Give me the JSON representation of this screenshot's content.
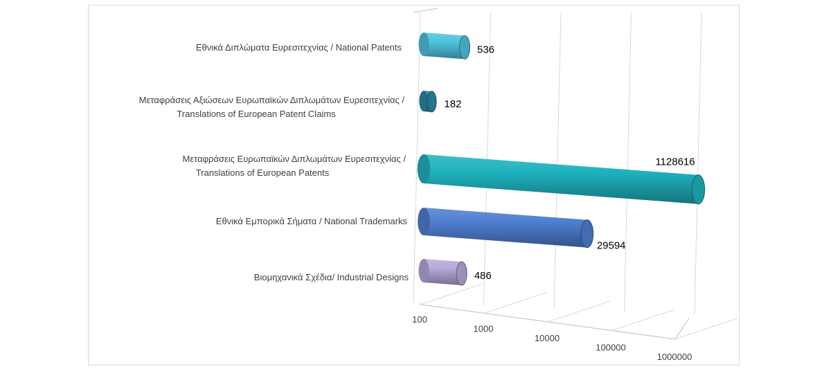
{
  "chart_data": {
    "type": "bar",
    "orientation": "horizontal",
    "style": "3d-cylinder",
    "x_scale": "log",
    "xlim": [
      100,
      1000000
    ],
    "grid": true,
    "legend": "none",
    "categories": [
      [
        "Εθνικά Διπλώματα Ευρεσιτεχνίας / National Patents"
      ],
      [
        "Μεταφράσεις Αξιώσεων Ευρωπαϊκών Διπλωμάτων Ευρεσιτεχνίας /",
        "Translations of European Patent Claims"
      ],
      [
        "Μεταφράσεις Ευρωπαϊκών Διπλωμάτων Ευρεσιτεχνίας /",
        "Translations of European Patents"
      ],
      [
        "Εθνικά Εμπορικά Σήματα / National Trademarks"
      ],
      [
        "Βιομηχανικά Σχέδια/ Industrial Designs"
      ]
    ],
    "values": [
      536,
      182,
      1128616,
      29594,
      486
    ],
    "value_labels": [
      "536",
      "182",
      "1128616",
      "29594",
      "486"
    ],
    "colors": [
      "#4fc3df",
      "#2b8aa6",
      "#1fb3bf",
      "#4f7fd1",
      "#b7a9dc"
    ],
    "x_ticks": [
      "100",
      "1000",
      "10000",
      "100000",
      "1000000"
    ]
  }
}
